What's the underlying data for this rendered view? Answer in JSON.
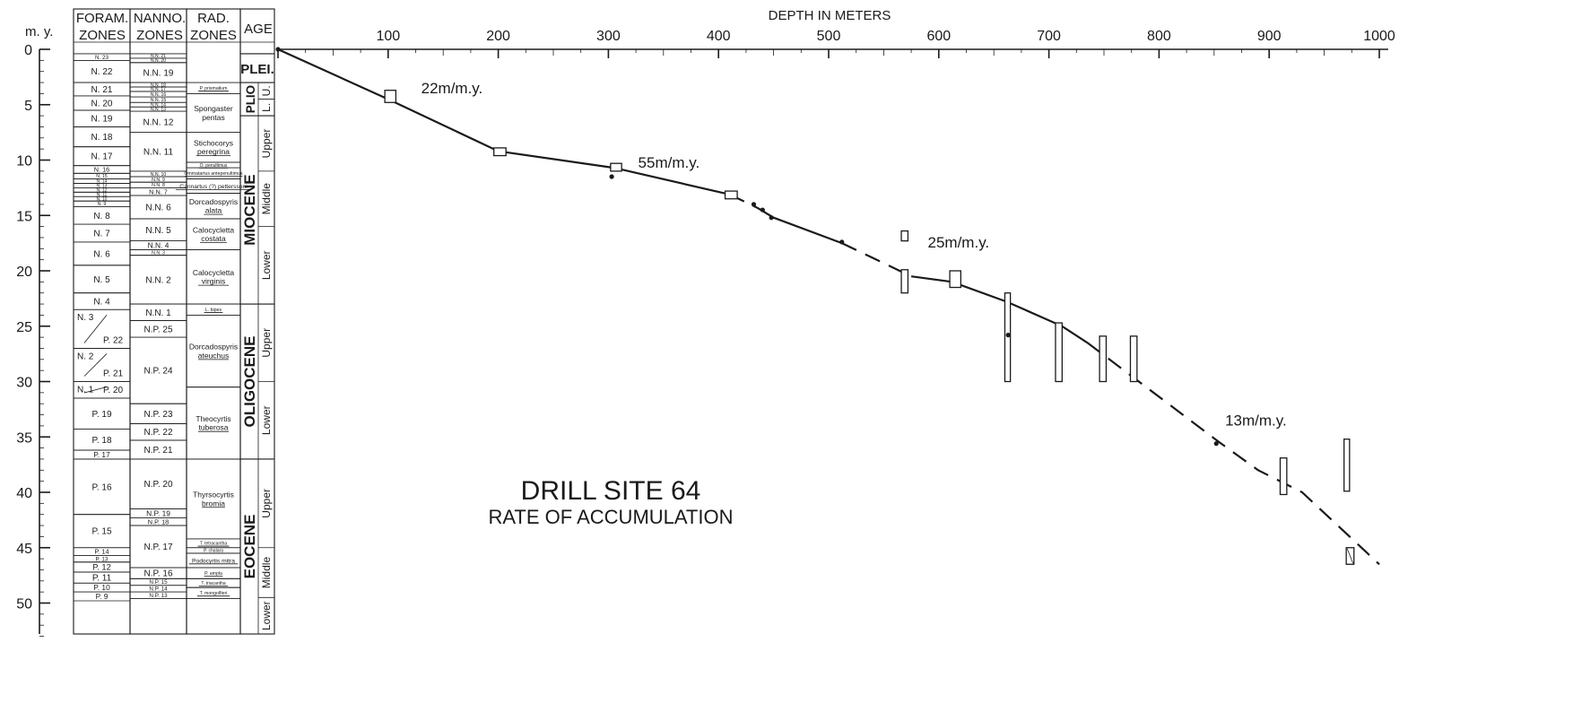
{
  "chart_data": {
    "type": "line",
    "title": "DRILL SITE 64",
    "subtitle": "RATE OF ACCUMULATION",
    "xlabel": "DEPTH IN METERS",
    "ylabel": "m. y.",
    "xlim": [
      0,
      1000
    ],
    "ylim": [
      0,
      54
    ],
    "y_reversed": true,
    "x_ticks": [
      "100",
      "200",
      "300",
      "400",
      "500",
      "600",
      "700",
      "800",
      "900",
      "1000"
    ],
    "y_ticks": [
      "0",
      "5",
      "10",
      "15",
      "20",
      "25",
      "30",
      "35",
      "40",
      "45",
      "50"
    ],
    "columns": {
      "my": "m. y.",
      "foram": [
        "FORAM.",
        "ZONES"
      ],
      "nanno": [
        "NANNO.",
        "ZONES"
      ],
      "rad": [
        "RAD.",
        "ZONES"
      ],
      "age": "AGE"
    },
    "foram_zones": [
      {
        "label": "N. 23",
        "top": 0.4,
        "bottom": 1.0
      },
      {
        "label": "N. 22",
        "top": 1.0,
        "bottom": 3.0
      },
      {
        "label": "N. 21",
        "top": 3.0,
        "bottom": 4.2
      },
      {
        "label": "N. 20",
        "top": 4.2,
        "bottom": 5.5
      },
      {
        "label": "N. 19",
        "top": 5.5,
        "bottom": 7.0
      },
      {
        "label": "N. 18",
        "top": 7.0,
        "bottom": 8.8
      },
      {
        "label": "N. 17",
        "top": 8.8,
        "bottom": 10.5
      },
      {
        "label": "N. 16",
        "top": 10.5,
        "bottom": 11.2
      },
      {
        "label": "N. 15",
        "top": 11.2,
        "bottom": 11.7
      },
      {
        "label": "N. 14",
        "top": 11.7,
        "bottom": 12.1
      },
      {
        "label": "N. 13",
        "top": 12.1,
        "bottom": 12.5
      },
      {
        "label": "N. 12",
        "top": 12.5,
        "bottom": 12.9
      },
      {
        "label": "N. 11",
        "top": 12.9,
        "bottom": 13.3
      },
      {
        "label": "N. 10",
        "top": 13.3,
        "bottom": 13.7
      },
      {
        "label": "N. 9",
        "top": 13.7,
        "bottom": 14.2
      },
      {
        "label": "N. 8",
        "top": 14.2,
        "bottom": 15.8
      },
      {
        "label": "N. 7",
        "top": 15.8,
        "bottom": 17.4
      },
      {
        "label": "N. 6",
        "top": 17.4,
        "bottom": 19.5
      },
      {
        "label": "N. 5",
        "top": 19.5,
        "bottom": 22.0
      },
      {
        "label": "N. 4",
        "top": 22.0,
        "bottom": 23.5
      },
      {
        "label": "N. 3 / P. 22",
        "top": 23.5,
        "bottom": 27.0
      },
      {
        "label": "N. 2 / P. 21",
        "top": 27.0,
        "bottom": 30.0
      },
      {
        "label": "N. 1 / P. 20",
        "top": 30.0,
        "bottom": 31.5
      },
      {
        "label": "P. 19",
        "top": 31.5,
        "bottom": 34.3
      },
      {
        "label": "P. 18",
        "top": 34.3,
        "bottom": 36.2
      },
      {
        "label": "P. 17",
        "top": 36.2,
        "bottom": 37.0
      },
      {
        "label": "P. 16",
        "top": 37.0,
        "bottom": 42.0
      },
      {
        "label": "P. 15",
        "top": 42.0,
        "bottom": 45.0
      },
      {
        "label": "P. 14",
        "top": 45.0,
        "bottom": 45.7
      },
      {
        "label": "P. 13",
        "top": 45.7,
        "bottom": 46.3
      },
      {
        "label": "P. 12",
        "top": 46.3,
        "bottom": 47.2
      },
      {
        "label": "P. 11",
        "top": 47.2,
        "bottom": 48.2
      },
      {
        "label": "P. 10",
        "top": 48.2,
        "bottom": 49.0
      },
      {
        "label": "P. 9",
        "top": 49.0,
        "bottom": 49.8
      }
    ],
    "nanno_zones": [
      {
        "label": "N.N. 21",
        "top": 0.4,
        "bottom": 0.8
      },
      {
        "label": "N.N. 20",
        "top": 0.8,
        "bottom": 1.2
      },
      {
        "label": "N.N. 19",
        "top": 1.2,
        "bottom": 3.0
      },
      {
        "label": "N.N. 18",
        "top": 3.0,
        "bottom": 3.4
      },
      {
        "label": "N.N. 17",
        "top": 3.4,
        "bottom": 3.8
      },
      {
        "label": "N.N. 16",
        "top": 3.8,
        "bottom": 4.3
      },
      {
        "label": "N.N. 15",
        "top": 4.3,
        "bottom": 4.8
      },
      {
        "label": "N.N. 14",
        "top": 4.8,
        "bottom": 5.2
      },
      {
        "label": "N.N. 13",
        "top": 5.2,
        "bottom": 5.6
      },
      {
        "label": "N.N. 12",
        "top": 5.6,
        "bottom": 7.5
      },
      {
        "label": "N.N. 11",
        "top": 7.5,
        "bottom": 11.0
      },
      {
        "label": "N.N. 10",
        "top": 11.0,
        "bottom": 11.5
      },
      {
        "label": "N.N. 9",
        "top": 11.5,
        "bottom": 12.0
      },
      {
        "label": "N.N. 8",
        "top": 12.0,
        "bottom": 12.5
      },
      {
        "label": "N.N. 7",
        "top": 12.5,
        "bottom": 13.2
      },
      {
        "label": "N.N. 6",
        "top": 13.2,
        "bottom": 15.3
      },
      {
        "label": "N.N. 5",
        "top": 15.3,
        "bottom": 17.3
      },
      {
        "label": "N.N. 4",
        "top": 17.3,
        "bottom": 18.1
      },
      {
        "label": "N.N. 3",
        "top": 18.1,
        "bottom": 18.6
      },
      {
        "label": "N.N. 2",
        "top": 18.6,
        "bottom": 23.0
      },
      {
        "label": "N.N. 1",
        "top": 23.0,
        "bottom": 24.5
      },
      {
        "label": "N.P. 25",
        "top": 24.5,
        "bottom": 26.0
      },
      {
        "label": "N.P. 24",
        "top": 26.0,
        "bottom": 32.0
      },
      {
        "label": "N.P. 23",
        "top": 32.0,
        "bottom": 33.8
      },
      {
        "label": "N.P. 22",
        "top": 33.8,
        "bottom": 35.3
      },
      {
        "label": "N.P. 21",
        "top": 35.3,
        "bottom": 37.0
      },
      {
        "label": "N.P. 20",
        "top": 37.0,
        "bottom": 41.5
      },
      {
        "label": "N.P. 19",
        "top": 41.5,
        "bottom": 42.3
      },
      {
        "label": "N.P. 18",
        "top": 42.3,
        "bottom": 43.0
      },
      {
        "label": "N.P. 17",
        "top": 43.0,
        "bottom": 46.8
      },
      {
        "label": "N.P. 16",
        "top": 46.8,
        "bottom": 47.8
      },
      {
        "label": "N.P. 15",
        "top": 47.8,
        "bottom": 48.4
      },
      {
        "label": "N.P. 14",
        "top": 48.4,
        "bottom": 49.0
      },
      {
        "label": "N.P. 13",
        "top": 49.0,
        "bottom": 49.6
      }
    ],
    "rad_zones": [
      {
        "label": "P. prismatium",
        "top": 3.0,
        "bottom": 4.0,
        "underline": true
      },
      {
        "label": "Spongaster pentas",
        "top": 4.0,
        "bottom": 7.5
      },
      {
        "label": "Stichocorys peregrina",
        "top": 7.5,
        "bottom": 10.2,
        "underline": true
      },
      {
        "label": "O. penultimus",
        "top": 10.2,
        "bottom": 10.7,
        "underline": true
      },
      {
        "label": "Ommatartus antepenultimus",
        "top": 10.7,
        "bottom": 11.7,
        "underline": true
      },
      {
        "label": "Cannartus (?) petterssoni",
        "top": 11.7,
        "bottom": 13.0,
        "underline": true
      },
      {
        "label": "Dorcadospyris alata",
        "top": 13.0,
        "bottom": 15.3,
        "underline": true
      },
      {
        "label": "Calocycletta costata",
        "top": 15.3,
        "bottom": 18.1,
        "underline": true
      },
      {
        "label": "Calocycletta virginis",
        "top": 18.1,
        "bottom": 23.0,
        "underline": true
      },
      {
        "label": "L. bipes",
        "top": 23.0,
        "bottom": 24.0,
        "underline": true
      },
      {
        "label": "Dorcadospyris ateuchus",
        "top": 24.0,
        "bottom": 30.5,
        "underline": true
      },
      {
        "label": "Theocyrtis tuberosa",
        "top": 30.5,
        "bottom": 37.0,
        "underline": true
      },
      {
        "label": "Thyrsocyrtis bromia",
        "top": 37.0,
        "bottom": 44.2,
        "underline": true
      },
      {
        "label": "T. tetracantha",
        "top": 44.2,
        "bottom": 45.0,
        "underline": true
      },
      {
        "label": "P. chalara",
        "top": 45.0,
        "bottom": 45.5,
        "underline": true
      },
      {
        "label": "Podocyrtis mitra",
        "top": 45.5,
        "bottom": 46.8,
        "underline": true
      },
      {
        "label": "P. ampla",
        "top": 46.8,
        "bottom": 47.8,
        "underline": true
      },
      {
        "label": "T. triacantha",
        "top": 47.8,
        "bottom": 48.6,
        "underline": true
      },
      {
        "label": "T. mongolfieri",
        "top": 48.6,
        "bottom": 49.6,
        "underline": true
      }
    ],
    "ages": [
      {
        "epoch": "PLEI.",
        "top": 0.4,
        "bottom": 3.0
      },
      {
        "epoch": "PLIO",
        "top": 3.0,
        "bottom": 6.0,
        "subdivisions": [
          {
            "label": "U.",
            "top": 3.0,
            "bottom": 4.5
          },
          {
            "label": "L.",
            "top": 4.5,
            "bottom": 6.0
          }
        ]
      },
      {
        "epoch": "MIOCENE",
        "top": 6.0,
        "bottom": 23.0,
        "subdivisions": [
          {
            "label": "Upper",
            "top": 6.0,
            "bottom": 11.0
          },
          {
            "label": "Middle",
            "top": 11.0,
            "bottom": 16.0
          },
          {
            "label": "Lower",
            "top": 16.0,
            "bottom": 23.0
          }
        ]
      },
      {
        "epoch": "OLIGOCENE",
        "top": 23.0,
        "bottom": 37.0,
        "subdivisions": [
          {
            "label": "Upper",
            "top": 23.0,
            "bottom": 30.0
          },
          {
            "label": "Lower",
            "top": 30.0,
            "bottom": 37.0
          }
        ]
      },
      {
        "epoch": "EOCENE",
        "top": 37.0,
        "bottom": 54.0,
        "subdivisions": [
          {
            "label": "Upper",
            "top": 37.0,
            "bottom": 45.0
          },
          {
            "label": "Middle",
            "top": 45.0,
            "bottom": 49.5
          },
          {
            "label": "Lower",
            "top": 49.5,
            "bottom": 54.0
          }
        ]
      }
    ],
    "segments": [
      {
        "style": "solid",
        "points": [
          [
            0,
            0
          ],
          [
            100,
            4.5
          ],
          [
            200,
            9.2
          ],
          [
            305,
            10.7
          ],
          [
            410,
            13.1
          ]
        ]
      },
      {
        "style": "dashed",
        "points": [
          [
            410,
            13.1
          ],
          [
            435,
            14.3
          ]
        ]
      },
      {
        "style": "solid",
        "points": [
          [
            435,
            14.3
          ],
          [
            450,
            15.2
          ],
          [
            512,
            17.5
          ]
        ]
      },
      {
        "style": "dashed",
        "points": [
          [
            512,
            17.5
          ],
          [
            575,
            20.5
          ]
        ]
      },
      {
        "style": "solid",
        "points": [
          [
            575,
            20.5
          ],
          [
            612,
            21.0
          ],
          [
            662,
            22.8
          ],
          [
            712,
            25.0
          ],
          [
            735,
            26.5
          ]
        ]
      },
      {
        "style": "dashed",
        "points": [
          [
            735,
            26.5
          ],
          [
            855,
            35.5
          ],
          [
            890,
            38.0
          ],
          [
            930,
            40.0
          ],
          [
            1000,
            46.5
          ]
        ]
      }
    ],
    "boxes": [
      {
        "x": [
          97,
          107
        ],
        "y": [
          3.7,
          4.8
        ]
      },
      {
        "x": [
          196,
          207
        ],
        "y": [
          8.9,
          9.6
        ]
      },
      {
        "x": [
          302,
          312
        ],
        "y": [
          10.3,
          11.0
        ]
      },
      {
        "x": [
          406,
          417
        ],
        "y": [
          12.8,
          13.5
        ]
      },
      {
        "x": [
          566,
          572
        ],
        "y": [
          16.4,
          17.3
        ]
      },
      {
        "x": [
          566,
          572
        ],
        "y": [
          19.9,
          22.0
        ]
      },
      {
        "x": [
          610,
          620
        ],
        "y": [
          20.0,
          21.5
        ]
      },
      {
        "x": [
          660,
          665
        ],
        "y": [
          22.0,
          30.0
        ]
      },
      {
        "x": [
          706,
          712
        ],
        "y": [
          24.7,
          30.0
        ]
      },
      {
        "x": [
          746,
          752
        ],
        "y": [
          25.9,
          30.0
        ]
      },
      {
        "x": [
          774,
          780
        ],
        "y": [
          25.9,
          30.0
        ]
      },
      {
        "x": [
          910,
          916
        ],
        "y": [
          36.9,
          40.2
        ]
      },
      {
        "x": [
          968,
          973
        ],
        "y": [
          35.2,
          39.9
        ]
      },
      {
        "x": [
          970,
          977
        ],
        "y": [
          45.0,
          46.5
        ]
      }
    ],
    "dots": [
      [
        303,
        11.5
      ],
      [
        432,
        14.0
      ],
      [
        440,
        14.5
      ],
      [
        448,
        15.2
      ],
      [
        512,
        17.4
      ],
      [
        663,
        25.8
      ],
      [
        852,
        35.6
      ]
    ],
    "rate_labels": [
      {
        "text": "22m/m.y.",
        "x": 130,
        "y": 3.5
      },
      {
        "text": "55m/m.y.",
        "x": 327,
        "y": 10.2
      },
      {
        "text": "25m/m.y.",
        "x": 590,
        "y": 17.4
      },
      {
        "text": "13m/m.y.",
        "x": 860,
        "y": 33.5
      }
    ]
  }
}
